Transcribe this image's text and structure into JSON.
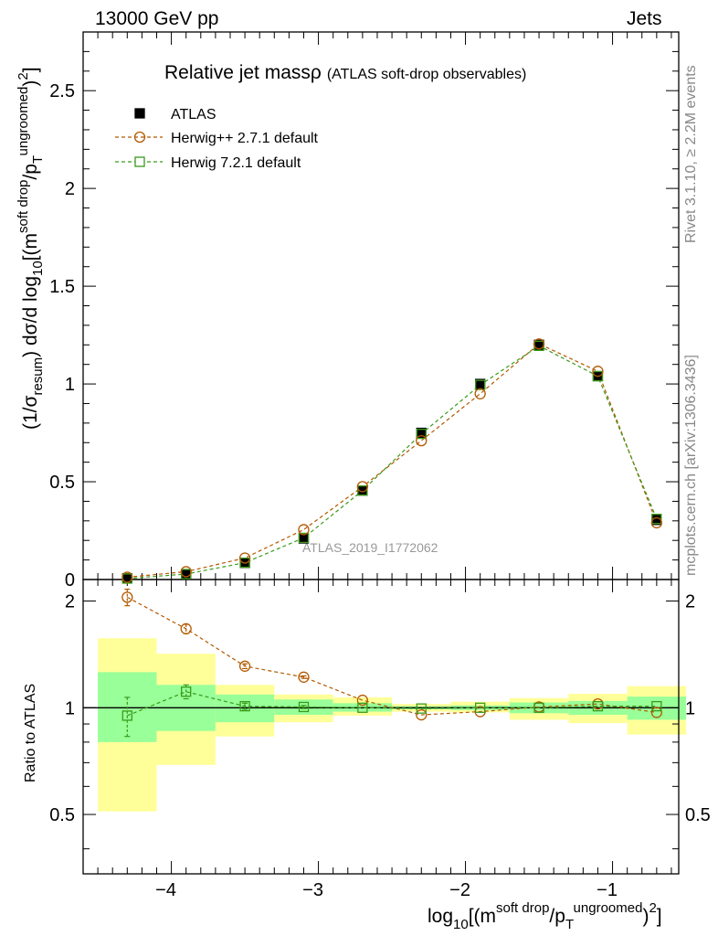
{
  "header": {
    "left": "13000 GeV pp",
    "right": "Jets"
  },
  "side_text": {
    "top": "Rivet 3.1.10, ≥ 2.2M events",
    "bottom": "mcplots.cern.ch [arXiv:1306.3436]"
  },
  "colors": {
    "herwigpp": "#b35900",
    "herwig7": "#3a9a1a",
    "band_inner": "#99ff99",
    "band_outer": "#ffff99",
    "data": "#000000"
  },
  "chart_data": [
    {
      "type": "scatter",
      "panel": "main",
      "title": "Relative jet massρ",
      "title_suffix": "(ATLAS soft-drop observables)",
      "ylabel": "(1/σresum) dσ/d log10[(m soft drop / pT ungroomed)2]",
      "xlim": [
        -4.6,
        -0.55
      ],
      "ylim": [
        0,
        2.8
      ],
      "yticks": [
        0,
        0.5,
        1,
        1.5,
        2,
        2.5
      ],
      "ytick_labels": [
        "0",
        "0.5",
        "1",
        "1.5",
        "2",
        "2.5"
      ],
      "watermark": "ATLAS_2019_I1772062",
      "legend_position": "top-left",
      "x": [
        -4.3,
        -3.9,
        -3.5,
        -3.1,
        -2.7,
        -2.3,
        -1.9,
        -1.5,
        -1.1,
        -0.7
      ],
      "series": [
        {
          "name": "ATLAS",
          "marker": "filled-square",
          "values": [
            0.006,
            0.024,
            0.085,
            0.21,
            0.455,
            0.75,
            1.0,
            1.2,
            1.04,
            0.305
          ]
        },
        {
          "name": "Herwig++ 2.7.1 default",
          "marker": "open-circle",
          "values": [
            0.012,
            0.04,
            0.11,
            0.255,
            0.475,
            0.71,
            0.95,
            1.205,
            1.065,
            0.29
          ]
        },
        {
          "name": "Herwig 7.2.1 default",
          "marker": "open-square",
          "values": [
            0.005,
            0.028,
            0.086,
            0.213,
            0.455,
            0.745,
            0.995,
            1.195,
            1.04,
            0.31
          ]
        }
      ]
    },
    {
      "type": "scatter",
      "panel": "ratio",
      "ylabel": "Ratio to ATLAS",
      "xlabel": "log10[(m soft drop / pT ungroomed)2]",
      "xlim": [
        -4.6,
        -0.55
      ],
      "ylim": [
        0.34,
        2.3
      ],
      "xticks": [
        -4,
        -3,
        -2,
        -1
      ],
      "xtick_labels": [
        "−4",
        "−3",
        "−2",
        "−1"
      ],
      "yticks": [
        0.5,
        1,
        2
      ],
      "ytick_labels": [
        "0.5",
        "1",
        "2"
      ],
      "bins": [
        [
          -4.5,
          -4.1
        ],
        [
          -4.1,
          -3.7
        ],
        [
          -3.7,
          -3.3
        ],
        [
          -3.3,
          -2.9
        ],
        [
          -2.9,
          -2.5
        ],
        [
          -2.5,
          -2.1
        ],
        [
          -2.1,
          -1.7
        ],
        [
          -1.7,
          -1.3
        ],
        [
          -1.3,
          -0.9
        ],
        [
          -0.9,
          -0.5
        ]
      ],
      "band_inner": [
        [
          0.8,
          1.26
        ],
        [
          0.86,
          1.16
        ],
        [
          0.91,
          1.09
        ],
        [
          0.955,
          1.055
        ],
        [
          0.975,
          1.03
        ],
        [
          0.99,
          1.01
        ],
        [
          0.985,
          1.015
        ],
        [
          0.965,
          1.035
        ],
        [
          0.955,
          1.045
        ],
        [
          0.925,
          1.075
        ]
      ],
      "band_outer": [
        [
          0.51,
          1.57
        ],
        [
          0.69,
          1.42
        ],
        [
          0.83,
          1.16
        ],
        [
          0.91,
          1.09
        ],
        [
          0.95,
          1.07
        ],
        [
          0.975,
          1.025
        ],
        [
          0.97,
          1.04
        ],
        [
          0.925,
          1.065
        ],
        [
          0.905,
          1.095
        ],
        [
          0.84,
          1.15
        ]
      ],
      "x": [
        -4.3,
        -3.9,
        -3.5,
        -3.1,
        -2.7,
        -2.3,
        -1.9,
        -1.5,
        -1.1,
        -0.7
      ],
      "series": [
        {
          "name": "Herwig++ 2.7.1 default",
          "marker": "open-circle",
          "values": [
            2.05,
            1.67,
            1.31,
            1.22,
            1.05,
            0.955,
            0.975,
            1.005,
            1.025,
            0.97
          ],
          "errors": [
            0.11,
            0.05,
            0.02,
            0.01,
            0.0,
            0.0,
            0.0,
            0.0,
            0.0,
            0.0
          ]
        },
        {
          "name": "Herwig 7.2.1 default",
          "marker": "open-square",
          "values": [
            0.95,
            1.11,
            1.01,
            1.005,
            1.0,
            0.995,
            1.0,
            1.0,
            1.01,
            1.01
          ],
          "errors": [
            0.12,
            0.05,
            0.02,
            0.01,
            0.0,
            0.0,
            0.0,
            0.0,
            0.0,
            0.0
          ]
        }
      ]
    }
  ]
}
